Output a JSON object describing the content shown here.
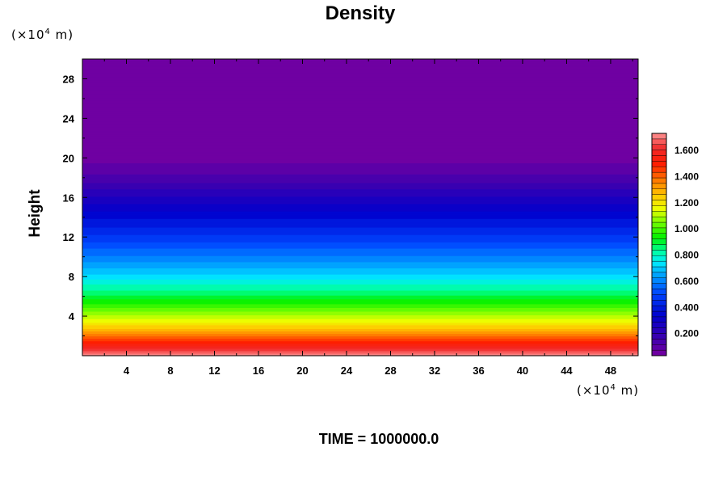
{
  "chart_data": {
    "type": "heatmap",
    "title": "Density",
    "ylabel": "Height",
    "xlabel": "",
    "x_unit_prefix": "(×10",
    "x_unit_exp": "4",
    "x_unit_suffix": " m)",
    "y_unit_prefix": "(×10",
    "y_unit_exp": "4",
    "y_unit_suffix": " m)",
    "xlim": [
      0,
      50.5
    ],
    "ylim": [
      0,
      30
    ],
    "x_ticks": [
      4,
      8,
      12,
      16,
      20,
      24,
      28,
      32,
      36,
      40,
      44,
      48
    ],
    "y_ticks": [
      4,
      8,
      12,
      16,
      20,
      24,
      28
    ],
    "footer": "TIME = 1000000.0",
    "colorbar": {
      "min": 0.0,
      "max": 1.7,
      "ticks": [
        0.2,
        0.4,
        0.6,
        0.8,
        1.0,
        1.2,
        1.4,
        1.6
      ],
      "tick_labels": [
        "0.200",
        "0.400",
        "0.600",
        "0.800",
        "1.000",
        "1.200",
        "1.400",
        "1.600"
      ],
      "levels": 40
    },
    "profile": {
      "heights": [
        0,
        1,
        2,
        3,
        4,
        6,
        8,
        10,
        12,
        14,
        16,
        18,
        20,
        30
      ],
      "density": [
        1.7,
        1.52,
        1.35,
        1.2,
        1.07,
        0.86,
        0.7,
        0.56,
        0.44,
        0.33,
        0.22,
        0.1,
        0.02,
        0.0
      ]
    }
  }
}
